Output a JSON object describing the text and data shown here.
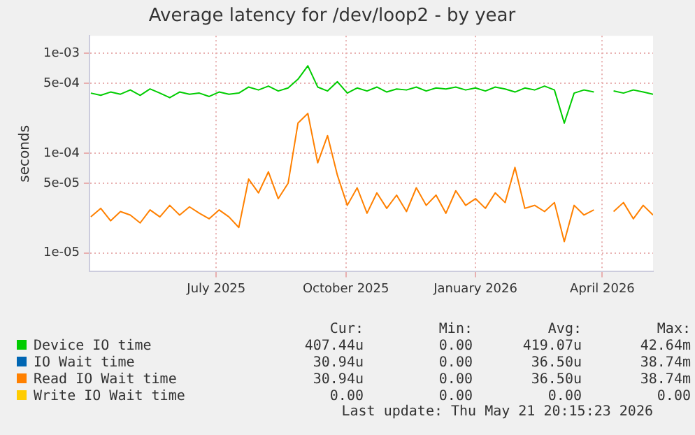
{
  "chart_data": {
    "type": "line",
    "title": "Average latency for /dev/loop2 - by year",
    "ylabel": "seconds",
    "x": [
      "2025-04-17",
      "2025-04-24",
      "2025-05-01",
      "2025-05-08",
      "2025-05-15",
      "2025-05-22",
      "2025-05-29",
      "2025-06-05",
      "2025-06-12",
      "2025-06-19",
      "2025-06-26",
      "2025-07-03",
      "2025-07-10",
      "2025-07-17",
      "2025-07-24",
      "2025-07-31",
      "2025-08-07",
      "2025-08-14",
      "2025-08-21",
      "2025-08-28",
      "2025-09-04",
      "2025-09-11",
      "2025-09-18",
      "2025-09-25",
      "2025-10-02",
      "2025-10-09",
      "2025-10-16",
      "2025-10-23",
      "2025-10-30",
      "2025-11-06",
      "2025-11-13",
      "2025-11-20",
      "2025-11-27",
      "2025-12-04",
      "2025-12-11",
      "2025-12-18",
      "2025-12-25",
      "2026-01-01",
      "2026-01-08",
      "2026-01-15",
      "2026-01-22",
      "2026-01-29",
      "2026-02-05",
      "2026-02-12",
      "2026-02-19",
      "2026-02-26",
      "2026-03-05",
      "2026-03-12",
      "2026-03-19",
      "2026-03-26",
      "2026-04-02",
      "2026-04-09",
      "2026-04-16",
      "2026-04-23",
      "2026-04-30",
      "2026-05-07",
      "2026-05-14",
      "2026-05-21"
    ],
    "series": [
      {
        "name": "Device IO time",
        "color": "#00cc00",
        "values": [
          0.0004,
          0.00038,
          0.00041,
          0.00039,
          0.00043,
          0.00038,
          0.00044,
          0.0004,
          0.00036,
          0.00041,
          0.00039,
          0.0004,
          0.00037,
          0.00041,
          0.00039,
          0.0004,
          0.00046,
          0.00043,
          0.00047,
          0.00042,
          0.00045,
          0.00055,
          0.00075,
          0.00046,
          0.00042,
          0.00052,
          0.0004,
          0.00045,
          0.00042,
          0.00046,
          0.00041,
          0.00044,
          0.00043,
          0.00046,
          0.00042,
          0.00045,
          0.00044,
          0.00046,
          0.00043,
          0.00045,
          0.00042,
          0.00046,
          0.00044,
          0.00041,
          0.00045,
          0.00043,
          0.00047,
          0.00043,
          0.0002,
          0.0004,
          0.00043,
          0.00041,
          null,
          0.00042,
          0.0004,
          0.00043,
          0.00041,
          0.00039
        ]
      },
      {
        "name": "IO Wait time",
        "color": "#0066b3",
        "values": [
          null,
          null,
          null,
          null,
          null,
          null,
          null,
          null,
          null,
          null,
          null,
          null,
          null,
          null,
          null,
          null,
          null,
          null,
          null,
          null,
          null,
          null,
          null,
          null,
          null,
          null,
          null,
          null,
          null,
          null,
          null,
          null,
          null,
          null,
          null,
          null,
          null,
          null,
          null,
          null,
          null,
          null,
          null,
          null,
          null,
          null,
          null,
          null,
          null,
          null,
          null,
          null,
          null,
          null,
          null,
          null,
          null,
          null
        ]
      },
      {
        "name": "Read IO Wait time",
        "color": "#ff8000",
        "values": [
          2.3e-05,
          2.8e-05,
          2.1e-05,
          2.6e-05,
          2.4e-05,
          2e-05,
          2.7e-05,
          2.3e-05,
          3e-05,
          2.4e-05,
          2.9e-05,
          2.5e-05,
          2.2e-05,
          2.7e-05,
          2.3e-05,
          1.8e-05,
          5.5e-05,
          4e-05,
          6.5e-05,
          3.5e-05,
          5e-05,
          0.0002,
          0.00025,
          8e-05,
          0.00015,
          6e-05,
          3e-05,
          4.5e-05,
          2.5e-05,
          4e-05,
          2.8e-05,
          3.8e-05,
          2.6e-05,
          4.5e-05,
          3e-05,
          3.8e-05,
          2.5e-05,
          4.2e-05,
          3e-05,
          3.5e-05,
          2.8e-05,
          4e-05,
          3.2e-05,
          7.2e-05,
          2.8e-05,
          3e-05,
          2.6e-05,
          3.2e-05,
          1.3e-05,
          3e-05,
          2.4e-05,
          2.7e-05,
          null,
          2.6e-05,
          3.2e-05,
          2.2e-05,
          3e-05,
          2.4e-05
        ]
      },
      {
        "name": "Write IO Wait time",
        "color": "#ffcc00",
        "values": [
          null,
          null,
          null,
          null,
          null,
          null,
          null,
          null,
          null,
          null,
          null,
          null,
          null,
          null,
          null,
          null,
          null,
          null,
          null,
          null,
          null,
          null,
          null,
          null,
          null,
          null,
          null,
          null,
          null,
          null,
          null,
          null,
          null,
          null,
          null,
          null,
          null,
          null,
          null,
          null,
          null,
          null,
          null,
          null,
          null,
          null,
          null,
          null,
          null,
          null,
          null,
          null,
          null,
          null,
          null,
          null,
          null,
          null
        ]
      }
    ],
    "log": true,
    "ylim": [
      6.5e-06,
      0.0015
    ],
    "yticks": [
      {
        "value": 1e-05,
        "label": "1e-05"
      },
      {
        "value": 5e-05,
        "label": "5e-05"
      },
      {
        "value": 0.0001,
        "label": "1e-04"
      },
      {
        "value": 0.0005,
        "label": "5e-04"
      },
      {
        "value": 0.001,
        "label": "1e-03"
      }
    ],
    "xlim": [
      "2025-04-16",
      "2026-05-21"
    ],
    "xticks": [
      {
        "value": "2025-07-15",
        "label": "July 2025"
      },
      {
        "value": "2025-10-15",
        "label": "October 2025"
      },
      {
        "value": "2026-01-15",
        "label": "January 2026"
      },
      {
        "value": "2026-04-15",
        "label": "April 2026"
      }
    ],
    "grid": true,
    "legend": "bottom",
    "marker": "none",
    "line_style": "solid",
    "annotations": [
      "Cur:",
      "Min:",
      "Avg:",
      "Max:",
      "407.44u",
      "0.00",
      "419.07u",
      "42.64m",
      "30.94u",
      "0.00",
      "36.50u",
      "38.74m",
      "30.94u",
      "0.00",
      "36.50u",
      "38.74m",
      "0.00",
      "0.00",
      "0.00",
      "0.00",
      "Last update: Thu May 21 20:15:23 2026"
    ]
  }
}
